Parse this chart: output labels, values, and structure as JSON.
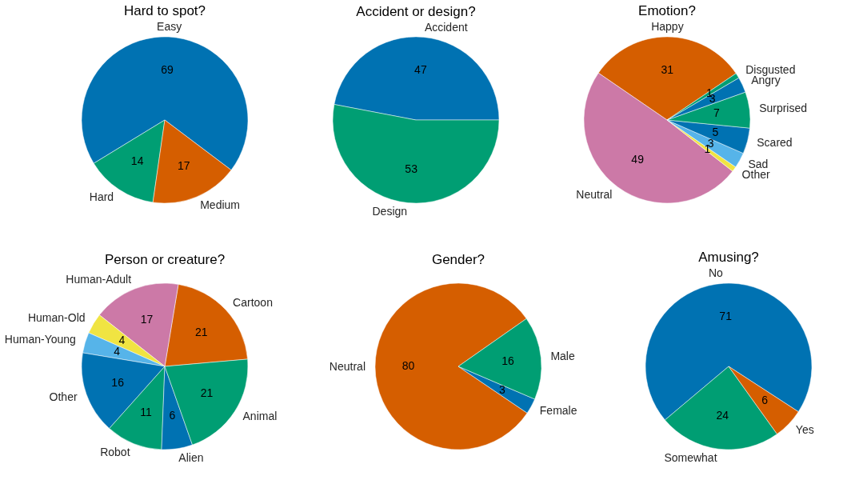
{
  "chart_data": [
    {
      "type": "pie",
      "title": "Hard to spot?",
      "categories": [
        "Easy",
        "Hard",
        "Medium"
      ],
      "values": [
        69,
        14,
        17
      ],
      "colors": [
        "#0072b2",
        "#009e73",
        "#d55e00"
      ],
      "data_labels": true
    },
    {
      "type": "pie",
      "title": "Accident or design?",
      "categories": [
        "Accident",
        "Design"
      ],
      "values": [
        47,
        53
      ],
      "colors": [
        "#0072b2",
        "#009e73"
      ],
      "data_labels": true
    },
    {
      "type": "pie",
      "title": "Emotion?",
      "categories": [
        "Happy",
        "Neutral",
        "Other",
        "Sad",
        "Scared",
        "Surprised",
        "Angry",
        "Disgusted"
      ],
      "values": [
        31,
        49,
        1,
        3,
        5,
        7,
        3,
        1
      ],
      "colors": [
        "#d55e00",
        "#cc79a7",
        "#f0e442",
        "#56b4e9",
        "#0072b2",
        "#009e73",
        "#0072b2",
        "#009e73"
      ],
      "data_labels": true
    },
    {
      "type": "pie",
      "title": "Person or creature?",
      "categories": [
        "Cartoon",
        "Human-Adult",
        "Human-Old",
        "Human-Young",
        "Other",
        "Robot",
        "Alien",
        "Animal"
      ],
      "values": [
        21,
        17,
        4,
        4,
        16,
        11,
        6,
        21
      ],
      "colors": [
        "#d55e00",
        "#cc79a7",
        "#f0e442",
        "#56b4e9",
        "#0072b2",
        "#009e73",
        "#0072b2",
        "#009e73"
      ],
      "data_labels": true
    },
    {
      "type": "pie",
      "title": "Gender?",
      "categories": [
        "Neutral",
        "Female",
        "Male"
      ],
      "values": [
        80,
        3,
        16
      ],
      "colors": [
        "#d55e00",
        "#0072b2",
        "#009e73"
      ],
      "data_labels": true
    },
    {
      "type": "pie",
      "title": "Amusing?",
      "categories": [
        "No",
        "Somewhat",
        "Yes"
      ],
      "values": [
        71,
        24,
        6
      ],
      "colors": [
        "#0072b2",
        "#009e73",
        "#d55e00"
      ],
      "data_labels": true
    }
  ]
}
